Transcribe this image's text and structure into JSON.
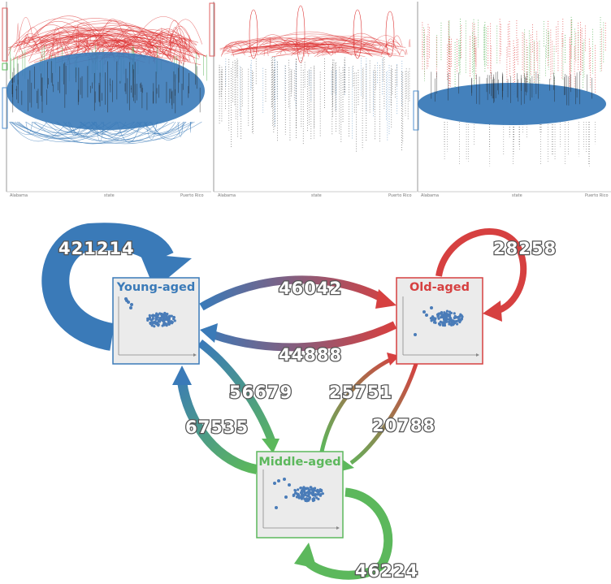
{
  "panels": [
    {
      "x_start": "Alabama",
      "x_mid": "state",
      "x_end": "Puerto Rico"
    },
    {
      "x_start": "Alabama",
      "x_mid": "state",
      "x_end": "Puerto Rico"
    },
    {
      "x_start": "Alabama",
      "x_mid": "state",
      "x_end": "Puerto Rico"
    }
  ],
  "nodes": {
    "young": {
      "label": "Young-aged",
      "color": "#3a7ab8"
    },
    "old": {
      "label": "Old-aged",
      "color": "#d64040"
    },
    "middle": {
      "label": "Middle-aged",
      "color": "#5cb85c"
    }
  },
  "flows": {
    "young_self": {
      "label": "421214"
    },
    "old_self": {
      "label": "28258"
    },
    "middle_self": {
      "label": "46224"
    },
    "young_to_old": {
      "label": "46042"
    },
    "old_to_young": {
      "label": "44888"
    },
    "young_to_middle": {
      "label": "56679"
    },
    "middle_to_young": {
      "label": "67535"
    },
    "middle_to_old": {
      "label": "25751"
    },
    "old_to_middle": {
      "label": "20788"
    }
  },
  "colors": {
    "young": "#3a7ab8",
    "old": "#d64040",
    "middle": "#5cb85c",
    "panel_border": "#cccccc"
  }
}
